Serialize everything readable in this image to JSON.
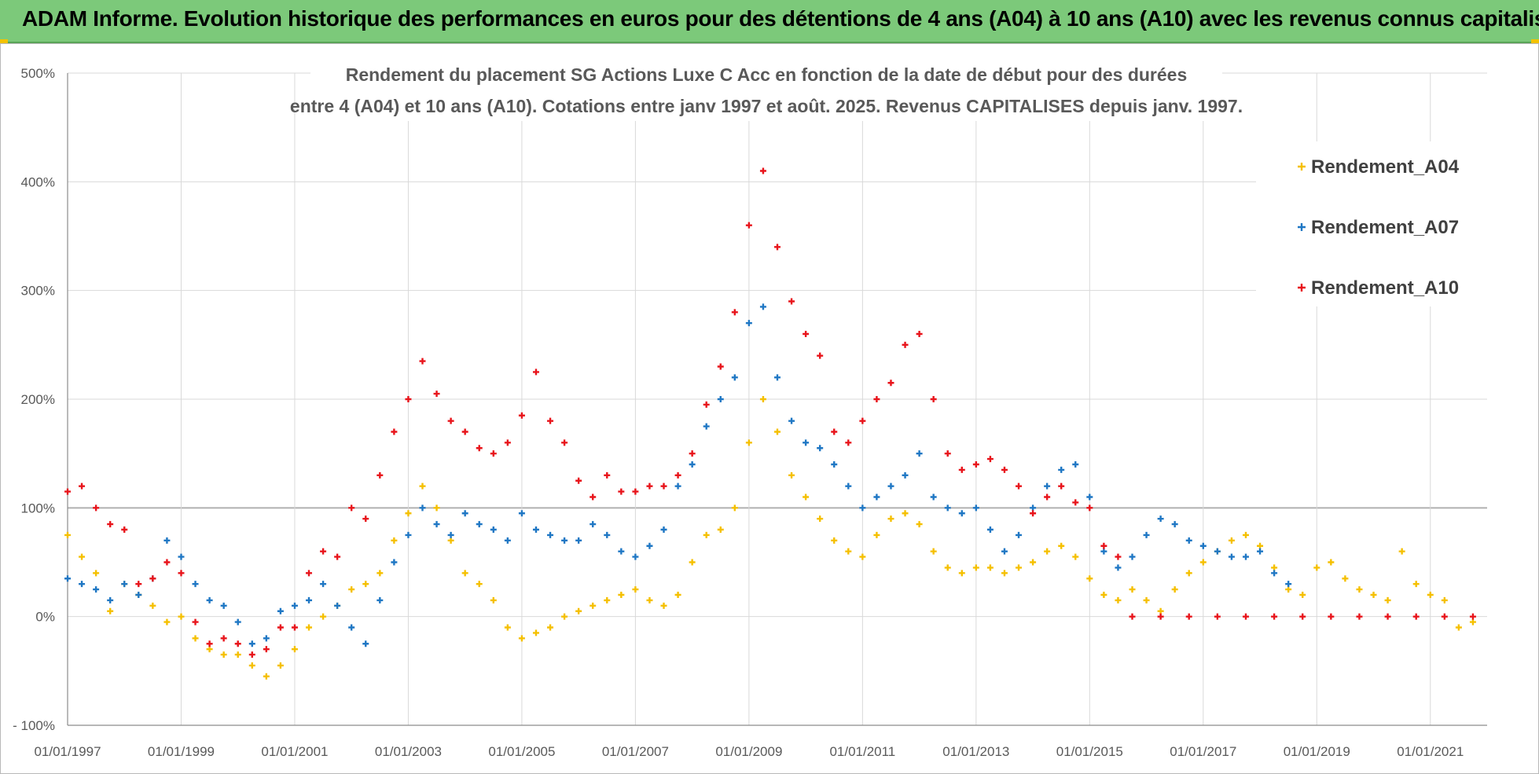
{
  "header": {
    "banner_text": "ADAM Informe. Evolution historique des performances en euros pour des détentions de 4 ans (A04) à 10 ans (A10) avec les revenus connus capitalisés"
  },
  "chart_data": {
    "type": "scatter",
    "title_lines": [
      "Rendement du placement SG Actions Luxe C Acc en fonction de la date de début pour des durées",
      "entre 4 (A04) et 10 ans (A10).  Cotations entre janv 1997 et août. 2025. Revenus CAPITALISES depuis janv. 1997."
    ],
    "xlabel": "",
    "ylabel": "",
    "x_range": [
      "1997-01-01",
      "2022-01-01"
    ],
    "ylim": [
      -100,
      500
    ],
    "y_ticks": [
      -100,
      0,
      100,
      200,
      300,
      400,
      500
    ],
    "y_tick_labels": [
      "- 100%",
      "0%",
      "100%",
      "200%",
      "300%",
      "400%",
      "500%"
    ],
    "x_tick_labels": [
      "01/01/1997",
      "01/01/1999",
      "01/01/2001",
      "01/01/2003",
      "01/01/2005",
      "01/01/2007",
      "01/01/2009",
      "01/01/2011",
      "01/01/2013",
      "01/01/2015",
      "01/01/2017",
      "01/01/2019",
      "01/01/2021"
    ],
    "x_tick_years": [
      1997,
      1999,
      2001,
      2003,
      2005,
      2007,
      2009,
      2011,
      2013,
      2015,
      2017,
      2019,
      2021
    ],
    "grid": true,
    "legend_position": "top-right",
    "marker": "+",
    "series": [
      {
        "name": "Rendement_A04",
        "color": "#f5c000",
        "points": [
          [
            "1997-01-01",
            75
          ],
          [
            "1997-04-01",
            55
          ],
          [
            "1997-07-01",
            40
          ],
          [
            "1997-10-01",
            5
          ],
          [
            "1998-01-01",
            30
          ],
          [
            "1998-04-01",
            20
          ],
          [
            "1998-07-01",
            10
          ],
          [
            "1998-10-01",
            -5
          ],
          [
            "1999-01-01",
            0
          ],
          [
            "1999-04-01",
            -20
          ],
          [
            "1999-07-01",
            -30
          ],
          [
            "1999-10-01",
            -35
          ],
          [
            "2000-01-01",
            -35
          ],
          [
            "2000-04-01",
            -45
          ],
          [
            "2000-07-01",
            -55
          ],
          [
            "2000-10-01",
            -45
          ],
          [
            "2001-01-01",
            -30
          ],
          [
            "2001-04-01",
            -10
          ],
          [
            "2001-07-01",
            0
          ],
          [
            "2001-10-01",
            10
          ],
          [
            "2002-01-01",
            25
          ],
          [
            "2002-04-01",
            30
          ],
          [
            "2002-07-01",
            40
          ],
          [
            "2002-10-01",
            70
          ],
          [
            "2003-01-01",
            95
          ],
          [
            "2003-04-01",
            120
          ],
          [
            "2003-07-01",
            100
          ],
          [
            "2003-10-01",
            70
          ],
          [
            "2004-01-01",
            40
          ],
          [
            "2004-04-01",
            30
          ],
          [
            "2004-07-01",
            15
          ],
          [
            "2004-10-01",
            -10
          ],
          [
            "2005-01-01",
            -20
          ],
          [
            "2005-04-01",
            -15
          ],
          [
            "2005-07-01",
            -10
          ],
          [
            "2005-10-01",
            0
          ],
          [
            "2006-01-01",
            5
          ],
          [
            "2006-04-01",
            10
          ],
          [
            "2006-07-01",
            15
          ],
          [
            "2006-10-01",
            20
          ],
          [
            "2007-01-01",
            25
          ],
          [
            "2007-04-01",
            15
          ],
          [
            "2007-07-01",
            10
          ],
          [
            "2007-10-01",
            20
          ],
          [
            "2008-01-01",
            50
          ],
          [
            "2008-04-01",
            75
          ],
          [
            "2008-07-01",
            80
          ],
          [
            "2008-10-01",
            100
          ],
          [
            "2009-01-01",
            160
          ],
          [
            "2009-04-01",
            200
          ],
          [
            "2009-07-01",
            170
          ],
          [
            "2009-10-01",
            130
          ],
          [
            "2010-01-01",
            110
          ],
          [
            "2010-04-01",
            90
          ],
          [
            "2010-07-01",
            70
          ],
          [
            "2010-10-01",
            60
          ],
          [
            "2011-01-01",
            55
          ],
          [
            "2011-04-01",
            75
          ],
          [
            "2011-07-01",
            90
          ],
          [
            "2011-10-01",
            95
          ],
          [
            "2012-01-01",
            85
          ],
          [
            "2012-04-01",
            60
          ],
          [
            "2012-07-01",
            45
          ],
          [
            "2012-10-01",
            40
          ],
          [
            "2013-01-01",
            45
          ],
          [
            "2013-04-01",
            45
          ],
          [
            "2013-07-01",
            40
          ],
          [
            "2013-10-01",
            45
          ],
          [
            "2014-01-01",
            50
          ],
          [
            "2014-04-01",
            60
          ],
          [
            "2014-07-01",
            65
          ],
          [
            "2014-10-01",
            55
          ],
          [
            "2015-01-01",
            35
          ],
          [
            "2015-04-01",
            20
          ],
          [
            "2015-07-01",
            15
          ],
          [
            "2015-10-01",
            25
          ],
          [
            "2016-01-01",
            15
          ],
          [
            "2016-04-01",
            5
          ],
          [
            "2016-07-01",
            25
          ],
          [
            "2016-10-01",
            40
          ],
          [
            "2017-01-01",
            50
          ],
          [
            "2017-04-01",
            60
          ],
          [
            "2017-07-01",
            70
          ],
          [
            "2017-10-01",
            75
          ],
          [
            "2018-01-01",
            65
          ],
          [
            "2018-04-01",
            45
          ],
          [
            "2018-07-01",
            25
          ],
          [
            "2018-10-01",
            20
          ],
          [
            "2019-01-01",
            45
          ],
          [
            "2019-04-01",
            50
          ],
          [
            "2019-07-01",
            35
          ],
          [
            "2019-10-01",
            25
          ],
          [
            "2020-01-01",
            20
          ],
          [
            "2020-04-01",
            15
          ],
          [
            "2020-07-01",
            60
          ],
          [
            "2020-10-01",
            30
          ],
          [
            "2021-01-01",
            20
          ],
          [
            "2021-04-01",
            15
          ],
          [
            "2021-07-01",
            -10
          ],
          [
            "2021-10-01",
            -5
          ]
        ]
      },
      {
        "name": "Rendement_A07",
        "color": "#1f77c4",
        "points": [
          [
            "1997-01-01",
            35
          ],
          [
            "1997-04-01",
            30
          ],
          [
            "1997-07-01",
            25
          ],
          [
            "1997-10-01",
            15
          ],
          [
            "1998-01-01",
            30
          ],
          [
            "1998-04-01",
            20
          ],
          [
            "1998-07-01",
            35
          ],
          [
            "1998-10-01",
            70
          ],
          [
            "1999-01-01",
            55
          ],
          [
            "1999-04-01",
            30
          ],
          [
            "1999-07-01",
            15
          ],
          [
            "1999-10-01",
            10
          ],
          [
            "2000-01-01",
            -5
          ],
          [
            "2000-04-01",
            -25
          ],
          [
            "2000-07-01",
            -20
          ],
          [
            "2000-10-01",
            5
          ],
          [
            "2001-01-01",
            10
          ],
          [
            "2001-04-01",
            15
          ],
          [
            "2001-07-01",
            30
          ],
          [
            "2001-10-01",
            10
          ],
          [
            "2002-01-01",
            -10
          ],
          [
            "2002-04-01",
            -25
          ],
          [
            "2002-07-01",
            15
          ],
          [
            "2002-10-01",
            50
          ],
          [
            "2003-01-01",
            75
          ],
          [
            "2003-04-01",
            100
          ],
          [
            "2003-07-01",
            85
          ],
          [
            "2003-10-01",
            75
          ],
          [
            "2004-01-01",
            95
          ],
          [
            "2004-04-01",
            85
          ],
          [
            "2004-07-01",
            80
          ],
          [
            "2004-10-01",
            70
          ],
          [
            "2005-01-01",
            95
          ],
          [
            "2005-04-01",
            80
          ],
          [
            "2005-07-01",
            75
          ],
          [
            "2005-10-01",
            70
          ],
          [
            "2006-01-01",
            70
          ],
          [
            "2006-04-01",
            85
          ],
          [
            "2006-07-01",
            75
          ],
          [
            "2006-10-01",
            60
          ],
          [
            "2007-01-01",
            55
          ],
          [
            "2007-04-01",
            65
          ],
          [
            "2007-07-01",
            80
          ],
          [
            "2007-10-01",
            120
          ],
          [
            "2008-01-01",
            140
          ],
          [
            "2008-04-01",
            175
          ],
          [
            "2008-07-01",
            200
          ],
          [
            "2008-10-01",
            220
          ],
          [
            "2009-01-01",
            270
          ],
          [
            "2009-04-01",
            285
          ],
          [
            "2009-07-01",
            220
          ],
          [
            "2009-10-01",
            180
          ],
          [
            "2010-01-01",
            160
          ],
          [
            "2010-04-01",
            155
          ],
          [
            "2010-07-01",
            140
          ],
          [
            "2010-10-01",
            120
          ],
          [
            "2011-01-01",
            100
          ],
          [
            "2011-04-01",
            110
          ],
          [
            "2011-07-01",
            120
          ],
          [
            "2011-10-01",
            130
          ],
          [
            "2012-01-01",
            150
          ],
          [
            "2012-04-01",
            110
          ],
          [
            "2012-07-01",
            100
          ],
          [
            "2012-10-01",
            95
          ],
          [
            "2013-01-01",
            100
          ],
          [
            "2013-04-01",
            80
          ],
          [
            "2013-07-01",
            60
          ],
          [
            "2013-10-01",
            75
          ],
          [
            "2014-01-01",
            100
          ],
          [
            "2014-04-01",
            120
          ],
          [
            "2014-07-01",
            135
          ],
          [
            "2014-10-01",
            140
          ],
          [
            "2015-01-01",
            110
          ],
          [
            "2015-04-01",
            60
          ],
          [
            "2015-07-01",
            45
          ],
          [
            "2015-10-01",
            55
          ],
          [
            "2016-01-01",
            75
          ],
          [
            "2016-04-01",
            90
          ],
          [
            "2016-07-01",
            85
          ],
          [
            "2016-10-01",
            70
          ],
          [
            "2017-01-01",
            65
          ],
          [
            "2017-04-01",
            60
          ],
          [
            "2017-07-01",
            55
          ],
          [
            "2017-10-01",
            55
          ],
          [
            "2018-01-01",
            60
          ],
          [
            "2018-04-01",
            40
          ],
          [
            "2018-07-01",
            30
          ]
        ]
      },
      {
        "name": "Rendement_A10",
        "color": "#e8141b",
        "points": [
          [
            "1997-01-01",
            115
          ],
          [
            "1997-04-01",
            120
          ],
          [
            "1997-07-01",
            100
          ],
          [
            "1997-10-01",
            85
          ],
          [
            "1998-01-01",
            80
          ],
          [
            "1998-04-01",
            30
          ],
          [
            "1998-07-01",
            35
          ],
          [
            "1998-10-01",
            50
          ],
          [
            "1999-01-01",
            40
          ],
          [
            "1999-04-01",
            -5
          ],
          [
            "1999-07-01",
            -25
          ],
          [
            "1999-10-01",
            -20
          ],
          [
            "2000-01-01",
            -25
          ],
          [
            "2000-04-01",
            -35
          ],
          [
            "2000-07-01",
            -30
          ],
          [
            "2000-10-01",
            -10
          ],
          [
            "2001-01-01",
            -10
          ],
          [
            "2001-04-01",
            40
          ],
          [
            "2001-07-01",
            60
          ],
          [
            "2001-10-01",
            55
          ],
          [
            "2002-01-01",
            100
          ],
          [
            "2002-04-01",
            90
          ],
          [
            "2002-07-01",
            130
          ],
          [
            "2002-10-01",
            170
          ],
          [
            "2003-01-01",
            200
          ],
          [
            "2003-04-01",
            235
          ],
          [
            "2003-07-01",
            205
          ],
          [
            "2003-10-01",
            180
          ],
          [
            "2004-01-01",
            170
          ],
          [
            "2004-04-01",
            155
          ],
          [
            "2004-07-01",
            150
          ],
          [
            "2004-10-01",
            160
          ],
          [
            "2005-01-01",
            185
          ],
          [
            "2005-04-01",
            225
          ],
          [
            "2005-07-01",
            180
          ],
          [
            "2005-10-01",
            160
          ],
          [
            "2006-01-01",
            125
          ],
          [
            "2006-04-01",
            110
          ],
          [
            "2006-07-01",
            130
          ],
          [
            "2006-10-01",
            115
          ],
          [
            "2007-01-01",
            115
          ],
          [
            "2007-04-01",
            120
          ],
          [
            "2007-07-01",
            120
          ],
          [
            "2007-10-01",
            130
          ],
          [
            "2008-01-01",
            150
          ],
          [
            "2008-04-01",
            195
          ],
          [
            "2008-07-01",
            230
          ],
          [
            "2008-10-01",
            280
          ],
          [
            "2009-01-01",
            360
          ],
          [
            "2009-04-01",
            410
          ],
          [
            "2009-07-01",
            340
          ],
          [
            "2009-10-01",
            290
          ],
          [
            "2010-01-01",
            260
          ],
          [
            "2010-04-01",
            240
          ],
          [
            "2010-07-01",
            170
          ],
          [
            "2010-10-01",
            160
          ],
          [
            "2011-01-01",
            180
          ],
          [
            "2011-04-01",
            200
          ],
          [
            "2011-07-01",
            215
          ],
          [
            "2011-10-01",
            250
          ],
          [
            "2012-01-01",
            260
          ],
          [
            "2012-04-01",
            200
          ],
          [
            "2012-07-01",
            150
          ],
          [
            "2012-10-01",
            135
          ],
          [
            "2013-01-01",
            140
          ],
          [
            "2013-04-01",
            145
          ],
          [
            "2013-07-01",
            135
          ],
          [
            "2013-10-01",
            120
          ],
          [
            "2014-01-01",
            95
          ],
          [
            "2014-04-01",
            110
          ],
          [
            "2014-07-01",
            120
          ],
          [
            "2014-10-01",
            105
          ],
          [
            "2015-01-01",
            100
          ],
          [
            "2015-04-01",
            65
          ],
          [
            "2015-07-01",
            55
          ],
          [
            "2015-10-01",
            0
          ],
          [
            "2016-04-01",
            0
          ],
          [
            "2016-10-01",
            0
          ],
          [
            "2017-04-01",
            0
          ],
          [
            "2017-10-01",
            0
          ],
          [
            "2018-04-01",
            0
          ],
          [
            "2018-10-01",
            0
          ],
          [
            "2019-04-01",
            0
          ],
          [
            "2019-10-01",
            0
          ],
          [
            "2020-04-01",
            0
          ],
          [
            "2020-10-01",
            0
          ],
          [
            "2021-04-01",
            0
          ],
          [
            "2021-10-01",
            0
          ]
        ]
      }
    ]
  }
}
